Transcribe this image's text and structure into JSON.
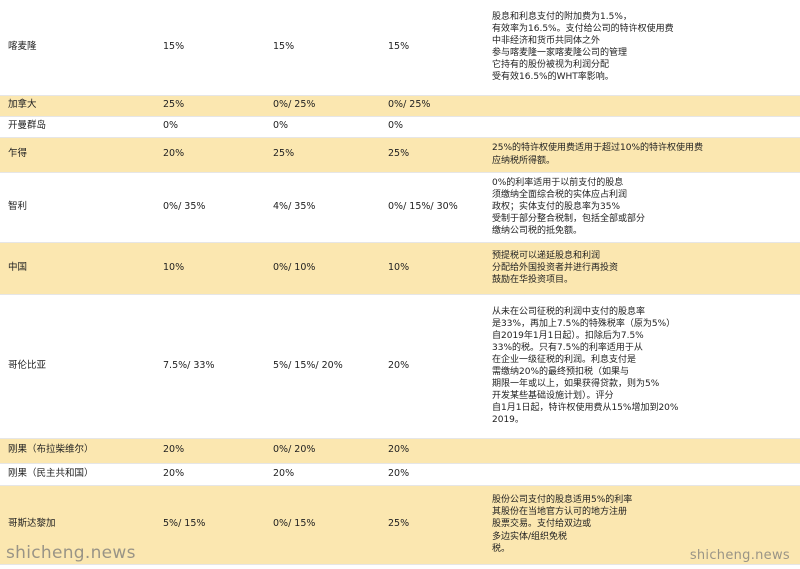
{
  "table": {
    "rows": [
      {
        "country": "喀麦隆",
        "dividends": "15%",
        "interest": "15%",
        "royalties": "15%",
        "note": "股息和利息支付的附加费为1.5%，\n有效率为16.5%。支付给公司的特许权使用费\n中非经济和货币共同体之外\n参与喀麦隆一家喀麦隆公司的管理\n它持有的股份被视为利润分配\n受有效16.5%的WHT率影响。"
      },
      {
        "country": "加拿大",
        "dividends": "25%",
        "interest": "0%/ 25%",
        "royalties": "0%/ 25%",
        "note": ""
      },
      {
        "country": "开曼群岛",
        "dividends": "0%",
        "interest": "0%",
        "royalties": "0%",
        "note": ""
      },
      {
        "country": "乍得",
        "dividends": "20%",
        "interest": "25%",
        "royalties": "25%",
        "note": "25%的特许权使用费适用于超过10%的特许权使用费\n应纳税所得额。"
      },
      {
        "country": "智利",
        "dividends": "0%/ 35%",
        "interest": "4%/ 35%",
        "royalties": "0%/ 15%/ 30%",
        "note": "0%的利率适用于以前支付的股息\n须缴纳全面综合税的实体应占利润\n政权；实体支付的股息率为35%\n受制于部分整合税制，包括全部或部分\n缴纳公司税的抵免额。"
      },
      {
        "country": "中国",
        "dividends": "10%",
        "interest": "0%/ 10%",
        "royalties": "10%",
        "note": "预提税可以递延股息和利润\n分配给外国投资者并进行再投资\n鼓励在华投资项目。"
      },
      {
        "country": "哥伦比亚",
        "dividends": "7.5%/ 33%",
        "interest": "5%/ 15%/ 20%",
        "royalties": "20%",
        "note": "从未在公司征税的利润中支付的股息率\n是33%，再加上7.5%的特殊税率（原为5%）\n自2019年1月1日起）。扣除后为7.5%\n33%的税。只有7.5%的利率适用于从\n在企业一级征税的利润。利息支付是\n需缴纳20%的最终预扣税（如果与\n期限一年或以上，如果获得贷款，则为5%\n开发某些基础设施计划）。评分\n自1月1日起，特许权使用费从15%增加到20%\n2019。"
      },
      {
        "country": "刚果（布拉柴维尔）",
        "dividends": "20%",
        "interest": "0%/ 20%",
        "royalties": "20%",
        "note": ""
      },
      {
        "country": "刚果（民主共和国）",
        "dividends": "20%",
        "interest": "20%",
        "royalties": "20%",
        "note": ""
      },
      {
        "country": "哥斯达黎加",
        "dividends": "5%/ 15%",
        "interest": "0%/ 15%",
        "royalties": "25%",
        "note": "股份公司支付的股息适用5%的利率\n其股份在当地官方认可的地方注册\n股票交易。支付给双边或\n多边实体/组织免税\n税。"
      }
    ]
  },
  "watermarks": {
    "left": "shicheng.news",
    "right": "shicheng.news"
  }
}
